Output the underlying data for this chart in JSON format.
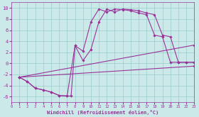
{
  "xlabel": "Windchill (Refroidissement éolien,°C)",
  "xlim": [
    0,
    23
  ],
  "ylim": [
    -7,
    11
  ],
  "xticks": [
    0,
    1,
    2,
    3,
    4,
    5,
    6,
    7,
    8,
    9,
    10,
    11,
    12,
    13,
    14,
    15,
    16,
    17,
    18,
    19,
    20,
    21,
    22,
    23
  ],
  "yticks": [
    -6,
    -4,
    -2,
    0,
    2,
    4,
    6,
    8,
    10
  ],
  "bg_color": "#cce9e9",
  "grid_color": "#99cccc",
  "line_color": "#993399",
  "curve1_x": [
    1,
    2,
    3,
    4,
    5,
    6,
    7,
    7.5,
    8,
    9,
    10,
    11,
    12,
    13,
    14,
    15,
    16,
    17,
    18,
    19,
    20,
    21,
    22,
    23
  ],
  "curve1_y": [
    -2.5,
    -3.3,
    -4.5,
    -4.8,
    -5.2,
    -5.8,
    -5.9,
    -5.9,
    3.2,
    2.2,
    7.5,
    9.8,
    9.3,
    9.8,
    9.7,
    9.5,
    9.1,
    8.8,
    5.1,
    4.8,
    0.2,
    0.2,
    0.2,
    0.2
  ],
  "curve2_x": [
    1,
    2,
    3,
    4,
    5,
    6,
    7,
    8,
    9,
    10,
    11,
    12,
    13,
    14,
    15,
    16,
    17,
    18,
    19,
    20,
    21,
    22,
    23
  ],
  "curve2_y": [
    -2.5,
    -3.3,
    -4.5,
    -4.8,
    -5.2,
    -5.8,
    -5.9,
    3.2,
    0.5,
    2.5,
    7.5,
    9.8,
    9.3,
    9.8,
    9.7,
    9.5,
    9.1,
    8.8,
    5.1,
    4.8,
    0.2,
    0.2,
    0.2
  ],
  "line3_x": [
    1,
    23
  ],
  "line3_y": [
    -2.5,
    3.3
  ],
  "line4_x": [
    1,
    23
  ],
  "line4_y": [
    -2.5,
    -0.5
  ]
}
